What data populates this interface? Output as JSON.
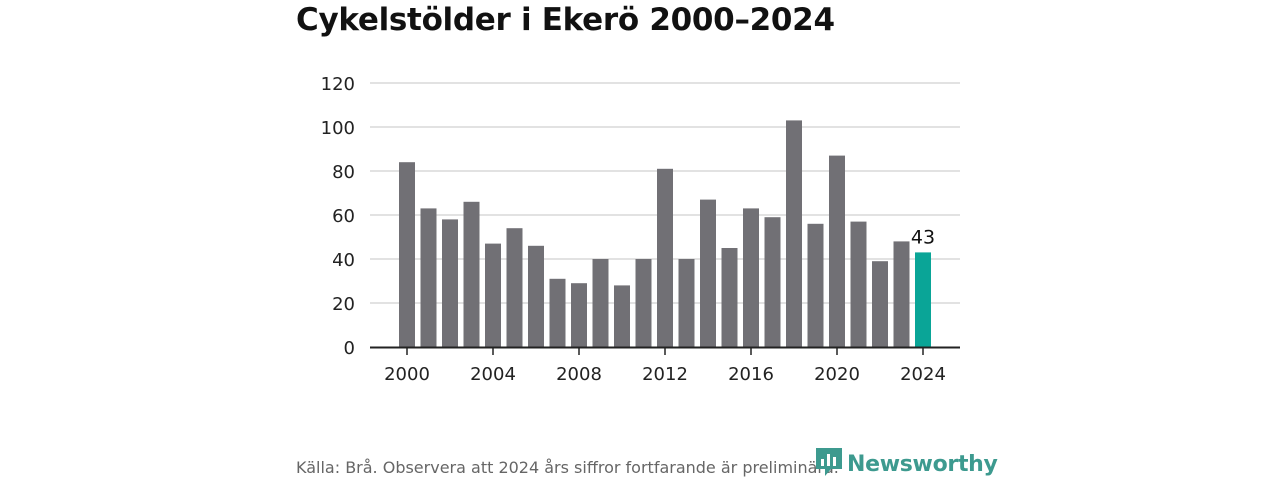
{
  "title": "Cykelstölder i Ekerö 2000–2024",
  "source": "Källa: Brå. Observera att 2024 års siffror fortfarande är preliminära.",
  "logo": {
    "text": "Newsworthy",
    "icon": "newsworthy-logo-icon",
    "color": "#3d9a8f"
  },
  "colors": {
    "bar": "#717075",
    "highlight": "#0aa597",
    "grid": "#d9d9d9",
    "axis": "#222222"
  },
  "chart_data": {
    "type": "bar",
    "title": "Cykelstölder i Ekerö 2000–2024",
    "xlabel": "",
    "ylabel": "",
    "categories": [
      2000,
      2001,
      2002,
      2003,
      2004,
      2005,
      2006,
      2007,
      2008,
      2009,
      2010,
      2011,
      2012,
      2013,
      2014,
      2015,
      2016,
      2017,
      2018,
      2019,
      2020,
      2021,
      2022,
      2023,
      2024
    ],
    "values": [
      84,
      63,
      58,
      66,
      47,
      54,
      46,
      31,
      29,
      40,
      28,
      40,
      81,
      40,
      67,
      45,
      63,
      59,
      103,
      56,
      87,
      57,
      39,
      48,
      43
    ],
    "ylim": [
      0,
      120
    ],
    "yticks": [
      0,
      20,
      40,
      60,
      80,
      100,
      120
    ],
    "xticks": [
      2000,
      2004,
      2008,
      2012,
      2016,
      2020,
      2024
    ],
    "highlight": {
      "category": 2024,
      "label": "43"
    },
    "grid": true,
    "legend": "none"
  }
}
